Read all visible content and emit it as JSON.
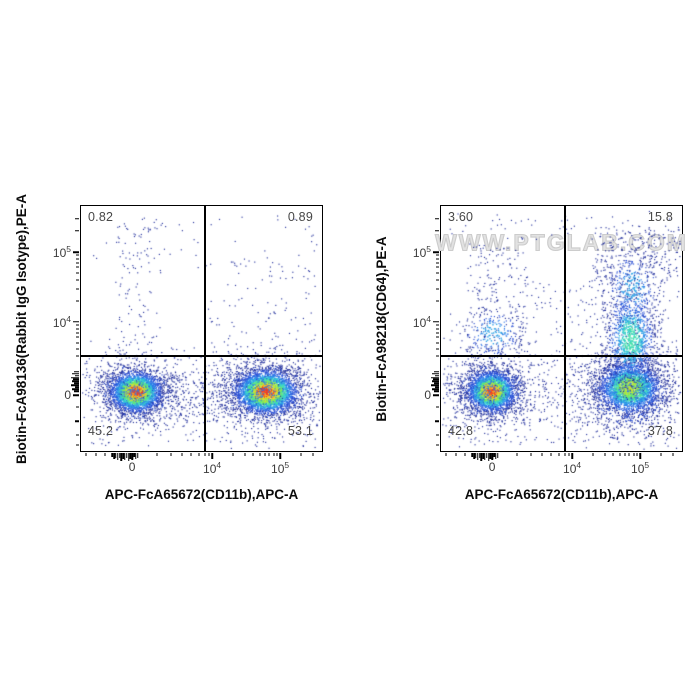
{
  "page": {
    "background": "#ffffff"
  },
  "watermark": {
    "text": "WWW.PTGLAB.COM",
    "color": "#e2e2e2"
  },
  "palette": {
    "density_scale": [
      "#23309c",
      "#2a4fd4",
      "#2d77e8",
      "#2fa3e6",
      "#33c9d2",
      "#49e0ac",
      "#63e872",
      "#96e84a",
      "#cbe438",
      "#f2d430",
      "#f89b26",
      "#ee3c25"
    ],
    "axis_color": "#000000",
    "tick_text_color": "#3b3b3b",
    "quadrant_text_color": "#474747"
  },
  "chart_data": [
    {
      "type": "scatter",
      "subtype": "flow-cytometry-density-dot-plot",
      "title": "",
      "xlabel": "APC-FcA65672(CD11b),APC-A",
      "ylabel": "Biotin-FcA98136(Rabbit IgG Isotype),PE-A",
      "x_scale": "biexponential",
      "y_scale": "biexponential",
      "x_ticks": [
        {
          "f": 0.212,
          "base": "0"
        },
        {
          "f": 0.544,
          "base": "10",
          "exp": "4"
        },
        {
          "f": 0.826,
          "base": "10",
          "exp": "5"
        }
      ],
      "y_ticks": [
        {
          "f": 0.188,
          "base": "10",
          "exp": "5"
        },
        {
          "f": 0.473,
          "base": "10",
          "exp": "4"
        },
        {
          "f": 0.772,
          "base": "0"
        }
      ],
      "x_minor": [
        [
          0.022,
          3
        ],
        [
          0.062,
          3
        ],
        [
          0.1,
          3
        ],
        [
          0.13,
          4
        ],
        [
          0.1375,
          6
        ],
        [
          0.145,
          5
        ],
        [
          0.1525,
          7
        ],
        [
          0.16,
          5
        ],
        [
          0.1675,
          8
        ],
        [
          0.175,
          6
        ],
        [
          0.1825,
          7
        ],
        [
          0.19,
          5
        ],
        [
          0.1975,
          8
        ],
        [
          0.205,
          6
        ],
        [
          0.2125,
          7
        ],
        [
          0.22,
          4
        ],
        [
          0.2275,
          6
        ],
        [
          0.235,
          5
        ],
        [
          0.315,
          3
        ],
        [
          0.372,
          3
        ],
        [
          0.42,
          3
        ],
        [
          0.458,
          3
        ],
        [
          0.49,
          3
        ],
        [
          0.515,
          3
        ],
        [
          0.531,
          3
        ],
        [
          0.629,
          3
        ],
        [
          0.679,
          3
        ],
        [
          0.714,
          3
        ],
        [
          0.741,
          3
        ],
        [
          0.763,
          3
        ],
        [
          0.782,
          3
        ],
        [
          0.799,
          3
        ],
        [
          0.813,
          3
        ],
        [
          0.911,
          3
        ],
        [
          0.961,
          3
        ]
      ],
      "y_minor": [
        [
          0.052,
          4
        ],
        [
          0.102,
          4
        ],
        [
          0.201,
          3
        ],
        [
          0.216,
          3
        ],
        [
          0.232,
          3
        ],
        [
          0.251,
          3
        ],
        [
          0.274,
          3
        ],
        [
          0.301,
          3
        ],
        [
          0.337,
          3
        ],
        [
          0.387,
          3
        ],
        [
          0.486,
          3
        ],
        [
          0.501,
          3
        ],
        [
          0.517,
          3
        ],
        [
          0.536,
          3
        ],
        [
          0.559,
          3
        ],
        [
          0.584,
          3
        ],
        [
          0.614,
          3
        ],
        [
          0.676,
          5
        ],
        [
          0.684,
          7
        ],
        [
          0.692,
          4
        ],
        [
          0.7,
          8
        ],
        [
          0.708,
          6
        ],
        [
          0.716,
          7
        ],
        [
          0.724,
          5
        ],
        [
          0.732,
          8
        ],
        [
          0.74,
          4
        ],
        [
          0.748,
          7
        ],
        [
          0.756,
          5
        ],
        [
          0.82,
          3
        ],
        [
          0.878,
          4
        ],
        [
          0.934,
          3
        ],
        [
          0.975,
          3
        ]
      ],
      "gate": {
        "x_f": 0.515,
        "y_f": 0.614
      },
      "quadrants": {
        "top_left": "0.82",
        "top_right": "0.89",
        "bottom_left": "45.2",
        "bottom_right": "53.1"
      },
      "seed": 12345,
      "populations": [
        {
          "shape": "gauss",
          "cx": 0.225,
          "cy": 0.757,
          "sx": 14,
          "sy": 11,
          "n": 2800,
          "cap": 11
        },
        {
          "shape": "gauss",
          "cx": 0.225,
          "cy": 0.757,
          "sx": 27,
          "sy": 21,
          "n": 750,
          "cap": 2
        },
        {
          "shape": "gauss",
          "cx": 0.765,
          "cy": 0.757,
          "sx": 17,
          "sy": 12,
          "n": 3200,
          "cap": 11
        },
        {
          "shape": "gauss",
          "cx": 0.765,
          "cy": 0.757,
          "sx": 31,
          "sy": 22,
          "n": 850,
          "cap": 2
        },
        {
          "shape": "rect",
          "x0": 0.14,
          "x1": 0.33,
          "y0": 0.04,
          "y1": 0.6,
          "n": 110,
          "cap": 1
        },
        {
          "shape": "rect",
          "x0": 0.52,
          "x1": 0.98,
          "y0": 0.22,
          "y1": 0.6,
          "n": 90,
          "cap": 1
        },
        {
          "shape": "rect",
          "x0": 0.02,
          "x1": 0.98,
          "y0": 0.62,
          "y1": 0.97,
          "n": 200,
          "cap": 1
        },
        {
          "shape": "rect",
          "x0": 0.33,
          "x1": 0.6,
          "y0": 0.68,
          "y1": 0.88,
          "n": 130,
          "cap": 2
        },
        {
          "shape": "rect",
          "x0": 0.02,
          "x1": 0.98,
          "y0": 0.03,
          "y1": 0.25,
          "n": 40,
          "cap": 0
        }
      ]
    },
    {
      "type": "scatter",
      "subtype": "flow-cytometry-density-dot-plot",
      "title": "",
      "xlabel": "APC-FcA65672(CD11b),APC-A",
      "ylabel": "Biotin-FcA98218(CD64),PE-A",
      "x_scale": "biexponential",
      "y_scale": "biexponential",
      "x_ticks": [
        {
          "f": 0.212,
          "base": "0"
        },
        {
          "f": 0.544,
          "base": "10",
          "exp": "4"
        },
        {
          "f": 0.826,
          "base": "10",
          "exp": "5"
        }
      ],
      "y_ticks": [
        {
          "f": 0.188,
          "base": "10",
          "exp": "5"
        },
        {
          "f": 0.473,
          "base": "10",
          "exp": "4"
        },
        {
          "f": 0.772,
          "base": "0"
        }
      ],
      "x_minor": [
        [
          0.022,
          3
        ],
        [
          0.062,
          3
        ],
        [
          0.1,
          3
        ],
        [
          0.13,
          4
        ],
        [
          0.1375,
          6
        ],
        [
          0.145,
          5
        ],
        [
          0.1525,
          7
        ],
        [
          0.16,
          5
        ],
        [
          0.1675,
          8
        ],
        [
          0.175,
          6
        ],
        [
          0.1825,
          7
        ],
        [
          0.19,
          5
        ],
        [
          0.1975,
          8
        ],
        [
          0.205,
          6
        ],
        [
          0.2125,
          7
        ],
        [
          0.22,
          4
        ],
        [
          0.2275,
          6
        ],
        [
          0.235,
          5
        ],
        [
          0.315,
          3
        ],
        [
          0.372,
          3
        ],
        [
          0.42,
          3
        ],
        [
          0.458,
          3
        ],
        [
          0.49,
          3
        ],
        [
          0.515,
          3
        ],
        [
          0.531,
          3
        ],
        [
          0.629,
          3
        ],
        [
          0.679,
          3
        ],
        [
          0.714,
          3
        ],
        [
          0.741,
          3
        ],
        [
          0.763,
          3
        ],
        [
          0.782,
          3
        ],
        [
          0.799,
          3
        ],
        [
          0.813,
          3
        ],
        [
          0.911,
          3
        ],
        [
          0.961,
          3
        ]
      ],
      "y_minor": [
        [
          0.052,
          4
        ],
        [
          0.102,
          4
        ],
        [
          0.201,
          3
        ],
        [
          0.216,
          3
        ],
        [
          0.232,
          3
        ],
        [
          0.251,
          3
        ],
        [
          0.274,
          3
        ],
        [
          0.301,
          3
        ],
        [
          0.337,
          3
        ],
        [
          0.387,
          3
        ],
        [
          0.486,
          3
        ],
        [
          0.501,
          3
        ],
        [
          0.517,
          3
        ],
        [
          0.536,
          3
        ],
        [
          0.559,
          3
        ],
        [
          0.584,
          3
        ],
        [
          0.614,
          3
        ],
        [
          0.676,
          5
        ],
        [
          0.684,
          7
        ],
        [
          0.692,
          4
        ],
        [
          0.7,
          8
        ],
        [
          0.708,
          6
        ],
        [
          0.716,
          7
        ],
        [
          0.724,
          5
        ],
        [
          0.732,
          8
        ],
        [
          0.74,
          4
        ],
        [
          0.748,
          7
        ],
        [
          0.756,
          5
        ],
        [
          0.82,
          3
        ],
        [
          0.878,
          4
        ],
        [
          0.934,
          3
        ],
        [
          0.975,
          3
        ]
      ],
      "gate": {
        "x_f": 0.515,
        "y_f": 0.614
      },
      "quadrants": {
        "top_left": "3.60",
        "top_right": "15.8",
        "bottom_left": "42.8",
        "bottom_right": "37.8"
      },
      "seed": 67890,
      "populations": [
        {
          "shape": "gauss",
          "cx": 0.207,
          "cy": 0.755,
          "sx": 13,
          "sy": 11,
          "n": 2600,
          "cap": 11
        },
        {
          "shape": "gauss",
          "cx": 0.207,
          "cy": 0.755,
          "sx": 25,
          "sy": 21,
          "n": 750,
          "cap": 2
        },
        {
          "shape": "gauss",
          "cx": 0.78,
          "cy": 0.74,
          "sx": 17,
          "sy": 14,
          "n": 2600,
          "cap": 8
        },
        {
          "shape": "gauss",
          "cx": 0.78,
          "cy": 0.76,
          "sx": 29,
          "sy": 25,
          "n": 950,
          "cap": 2
        },
        {
          "shape": "gauss",
          "cx": 0.785,
          "cy": 0.54,
          "sx": 14,
          "sy": 26,
          "n": 1100,
          "cap": 5
        },
        {
          "shape": "gauss",
          "cx": 0.79,
          "cy": 0.33,
          "sx": 16,
          "sy": 22,
          "n": 450,
          "cap": 3
        },
        {
          "shape": "rect",
          "x0": 0.62,
          "x1": 0.99,
          "y0": 0.08,
          "y1": 0.32,
          "n": 220,
          "cap": 1
        },
        {
          "shape": "rect",
          "x0": 0.1,
          "x1": 0.36,
          "y0": 0.15,
          "y1": 0.6,
          "n": 200,
          "cap": 1
        },
        {
          "shape": "gauss",
          "cx": 0.21,
          "cy": 0.52,
          "sx": 18,
          "sy": 16,
          "n": 260,
          "cap": 3
        },
        {
          "shape": "rect",
          "x0": 0.02,
          "x1": 0.99,
          "y0": 0.62,
          "y1": 0.97,
          "n": 250,
          "cap": 1
        },
        {
          "shape": "rect",
          "x0": 0.36,
          "x1": 0.62,
          "y0": 0.3,
          "y1": 0.9,
          "n": 120,
          "cap": 1
        },
        {
          "shape": "rect",
          "x0": 0.02,
          "x1": 0.99,
          "y0": 0.02,
          "y1": 0.15,
          "n": 50,
          "cap": 0
        }
      ]
    }
  ]
}
